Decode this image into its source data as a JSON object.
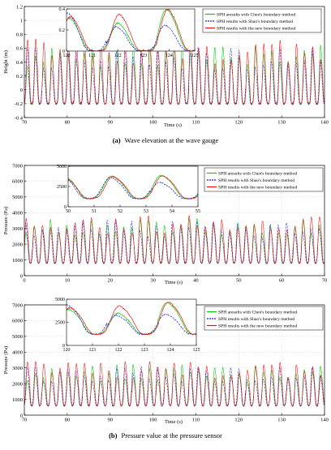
{
  "colors": {
    "chen": "#00cc00",
    "shao": "#1a1aee",
    "new": "#ee1111"
  },
  "captions": [
    {
      "label": "(a)",
      "text": "Wave elevation at the wave gauge"
    },
    {
      "label": "(b)",
      "text": "Pressure value at the pressure sensor"
    }
  ],
  "chart_data": [
    {
      "type": "line",
      "title": "",
      "xlabel": "Time (s)",
      "ylabel": "Height (m)",
      "xlim": [
        70,
        140
      ],
      "ylim": [
        -0.4,
        1.2
      ],
      "xticks": [
        70,
        80,
        90,
        100,
        110,
        120,
        130,
        140
      ],
      "yticks": [
        -0.4,
        -0.2,
        0,
        0.2,
        0.4,
        0.6,
        0.8,
        1,
        1.2
      ],
      "grid": true,
      "legend_position": "top-right",
      "wave": {
        "period": 1.9,
        "trough": -0.2,
        "crest": 0.55,
        "shape": 2.0
      },
      "series": [
        {
          "name": "SPH aresults with Chen's boundary method",
          "color_key": "chen",
          "style": "solid",
          "amp": 1.0,
          "phase": 0.0
        },
        {
          "name": "SPH results with Shao's boundary method",
          "color_key": "shao",
          "style": "dashed",
          "amp": 0.93,
          "phase": 0.05
        },
        {
          "name": "SPH results with the new boundary method",
          "color_key": "new",
          "style": "solid",
          "amp": 1.08,
          "phase": -0.05
        }
      ],
      "inset": {
        "xlim": [
          120,
          125
        ],
        "ylim": [
          0,
          0.4
        ],
        "xticks": [
          120,
          121,
          122,
          123,
          124,
          125
        ],
        "yticks": [
          0,
          0.2,
          0.4
        ],
        "wave": {
          "period": 1.9,
          "trough": 0.0,
          "crest": 0.35,
          "shape": 2.0
        }
      }
    },
    {
      "type": "line",
      "title": "",
      "xlabel": "Time (s)",
      "ylabel": "Pressure (Pa)",
      "xlim": [
        0,
        70
      ],
      "ylim": [
        0,
        7000
      ],
      "xticks": [
        0,
        10,
        20,
        30,
        40,
        50,
        60,
        70
      ],
      "yticks": [
        0,
        1000,
        2000,
        3000,
        4000,
        5000,
        6000,
        7000
      ],
      "grid": true,
      "legend_position": "top-right",
      "wave": {
        "period": 1.9,
        "trough": 800,
        "crest": 3200,
        "shape": 1.5
      },
      "series": [
        {
          "name": "SPH aresults with Chen's boundary method",
          "color_key": "chen",
          "style": "solid",
          "amp": 1.0,
          "phase": 0.0
        },
        {
          "name": "SPH results with Shao's boundary method",
          "color_key": "shao",
          "style": "dashed",
          "amp": 0.95,
          "phase": 0.05
        },
        {
          "name": "SPH results with the new boundary method",
          "color_key": "new",
          "style": "solid",
          "amp": 1.05,
          "phase": -0.05
        }
      ],
      "inset": {
        "xlim": [
          50,
          55
        ],
        "ylim": [
          0,
          5000
        ],
        "xticks": [
          50,
          51,
          52,
          53,
          54,
          55
        ],
        "yticks": [
          0,
          2500,
          5000
        ],
        "wave": {
          "period": 1.9,
          "trough": 1000,
          "crest": 3800,
          "shape": 1.5
        }
      }
    },
    {
      "type": "line",
      "title": "",
      "xlabel": "Time (s)",
      "ylabel": "Pressure (Pa)",
      "xlim": [
        70,
        140
      ],
      "ylim": [
        0,
        7000
      ],
      "xticks": [
        70,
        80,
        90,
        100,
        110,
        120,
        130,
        140
      ],
      "yticks": [
        0,
        1000,
        2000,
        3000,
        4000,
        5000,
        6000,
        7000
      ],
      "grid": true,
      "legend_position": "top-right",
      "wave": {
        "period": 1.9,
        "trough": 600,
        "crest": 2800,
        "shape": 1.5
      },
      "series": [
        {
          "name": "SPH aresults with Chen's boundary method",
          "color_key": "chen",
          "style": "solid",
          "amp": 1.0,
          "phase": 0.0
        },
        {
          "name": "SPH results with Shao's boundary method",
          "color_key": "shao",
          "style": "dashed",
          "amp": 0.95,
          "phase": 0.05
        },
        {
          "name": "SPH results with the new boundary method",
          "color_key": "new",
          "style": "solid",
          "amp": 1.1,
          "phase": -0.05
        }
      ],
      "inset": {
        "xlim": [
          120,
          125
        ],
        "ylim": [
          0,
          5000
        ],
        "xticks": [
          120,
          121,
          122,
          123,
          124,
          125
        ],
        "yticks": [
          0,
          2500,
          5000
        ],
        "wave": {
          "period": 1.9,
          "trough": 1200,
          "crest": 4200,
          "shape": 1.5
        }
      }
    }
  ]
}
